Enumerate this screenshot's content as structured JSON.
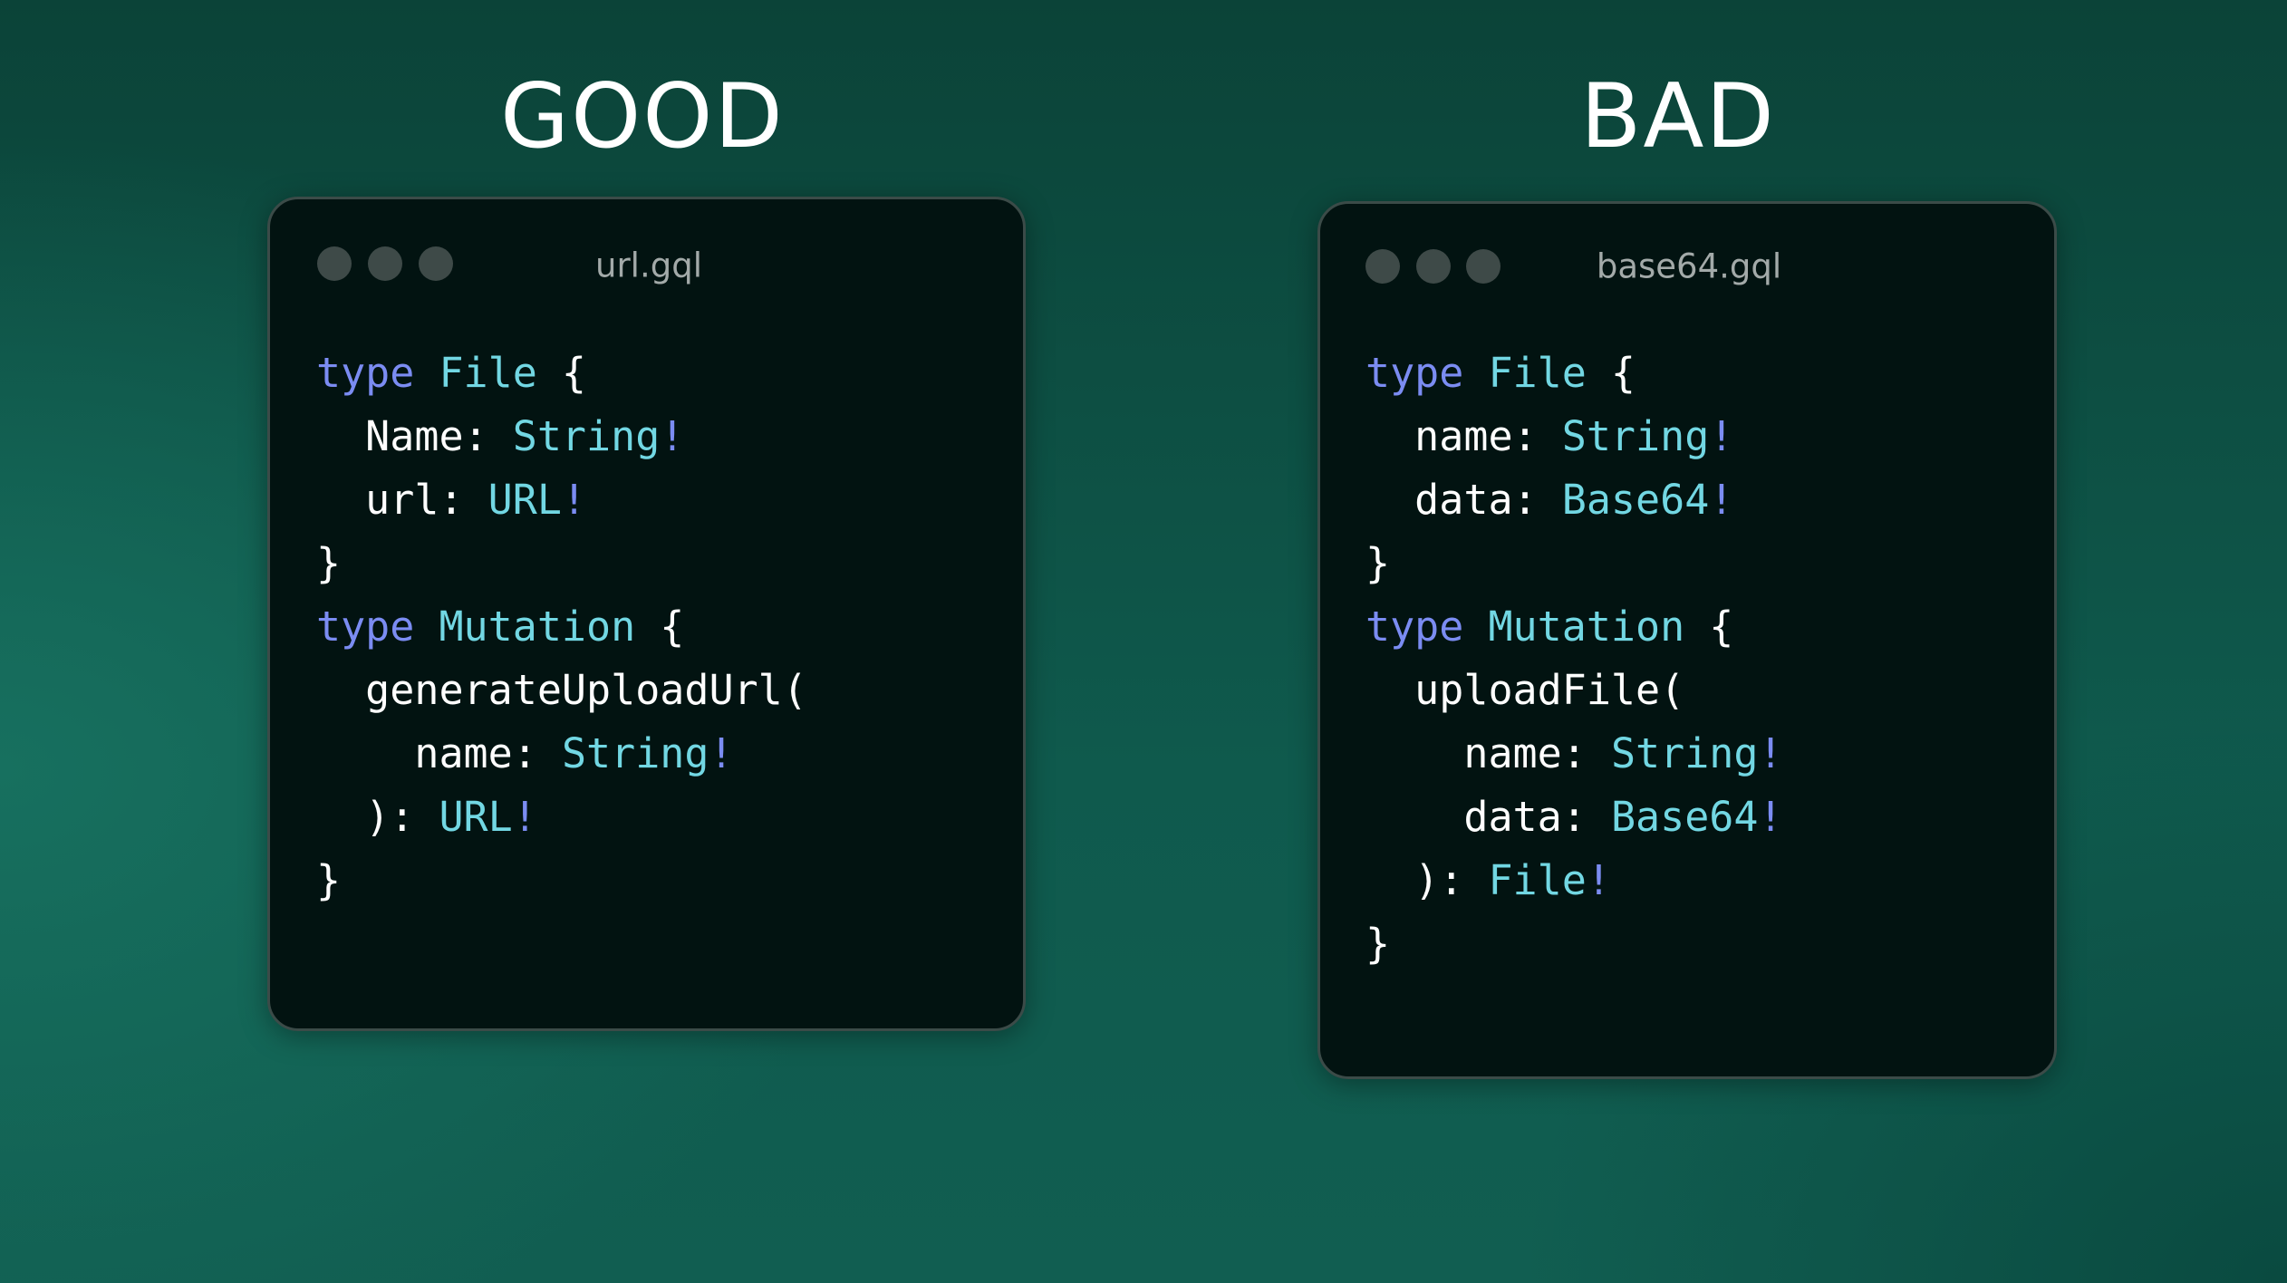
{
  "good": {
    "heading": "GOOD",
    "filename": "url.gql",
    "lines": [
      [
        {
          "t": "type ",
          "c": "kw"
        },
        {
          "t": "File",
          "c": "ty"
        },
        {
          "t": " {",
          "c": "pn"
        }
      ],
      [
        {
          "t": "  Name: ",
          "c": "pn"
        },
        {
          "t": "String",
          "c": "ty"
        },
        {
          "t": "!",
          "c": "bang"
        }
      ],
      [
        {
          "t": "  url: ",
          "c": "pn"
        },
        {
          "t": "URL",
          "c": "ty"
        },
        {
          "t": "!",
          "c": "bang"
        }
      ],
      [
        {
          "t": "}",
          "c": "pn"
        }
      ],
      [
        {
          "t": "type ",
          "c": "kw"
        },
        {
          "t": "Mutation",
          "c": "ty"
        },
        {
          "t": " {",
          "c": "pn"
        }
      ],
      [
        {
          "t": "  generateUploadUrl(",
          "c": "pn"
        }
      ],
      [
        {
          "t": "    name: ",
          "c": "pn"
        },
        {
          "t": "String",
          "c": "ty"
        },
        {
          "t": "!",
          "c": "bang"
        }
      ],
      [
        {
          "t": "  ): ",
          "c": "pn"
        },
        {
          "t": "URL",
          "c": "ty"
        },
        {
          "t": "!",
          "c": "bang"
        }
      ],
      [
        {
          "t": "}",
          "c": "pn"
        }
      ]
    ]
  },
  "bad": {
    "heading": "BAD",
    "filename": "base64.gql",
    "lines": [
      [
        {
          "t": "type ",
          "c": "kw"
        },
        {
          "t": "File",
          "c": "ty"
        },
        {
          "t": " {",
          "c": "pn"
        }
      ],
      [
        {
          "t": "  name: ",
          "c": "pn"
        },
        {
          "t": "String",
          "c": "ty"
        },
        {
          "t": "!",
          "c": "bang"
        }
      ],
      [
        {
          "t": "  data: ",
          "c": "pn"
        },
        {
          "t": "Base64",
          "c": "ty"
        },
        {
          "t": "!",
          "c": "bang"
        }
      ],
      [
        {
          "t": "}",
          "c": "pn"
        }
      ],
      [
        {
          "t": "type ",
          "c": "kw"
        },
        {
          "t": "Mutation",
          "c": "ty"
        },
        {
          "t": " {",
          "c": "pn"
        }
      ],
      [
        {
          "t": "  uploadFile(",
          "c": "pn"
        }
      ],
      [
        {
          "t": "    name: ",
          "c": "pn"
        },
        {
          "t": "String",
          "c": "ty"
        },
        {
          "t": "!",
          "c": "bang"
        }
      ],
      [
        {
          "t": "    data: ",
          "c": "pn"
        },
        {
          "t": "Base64",
          "c": "ty"
        },
        {
          "t": "!",
          "c": "bang"
        }
      ],
      [
        {
          "t": "  ): ",
          "c": "pn"
        },
        {
          "t": "File",
          "c": "ty"
        },
        {
          "t": "!",
          "c": "bang"
        }
      ],
      [
        {
          "t": "}",
          "c": "pn"
        }
      ]
    ]
  },
  "colors": {
    "keyword": "#7b8cf2",
    "type": "#72d7e3",
    "punct": "#ffffff",
    "card": "#021311",
    "dot": "#3e4a48"
  }
}
